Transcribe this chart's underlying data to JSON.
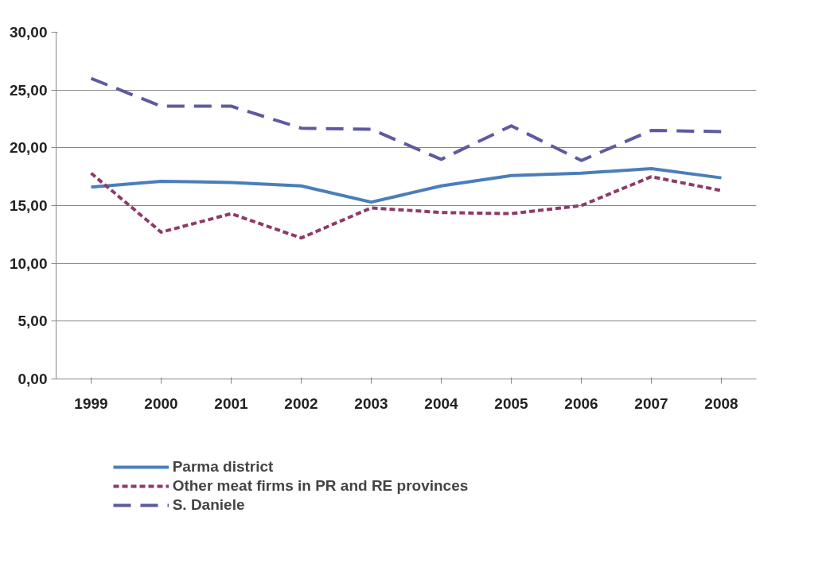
{
  "chart_data": {
    "type": "line",
    "categories": [
      "1999",
      "2000",
      "2001",
      "2002",
      "2003",
      "2004",
      "2005",
      "2006",
      "2007",
      "2008"
    ],
    "ylim": [
      0,
      30
    ],
    "yticks": [
      {
        "value": 0,
        "label": "0,00"
      },
      {
        "value": 5,
        "label": "5,00"
      },
      {
        "value": 10,
        "label": "10,00"
      },
      {
        "value": 15,
        "label": "15,00"
      },
      {
        "value": 20,
        "label": "20,00"
      },
      {
        "value": 25,
        "label": "25,00"
      },
      {
        "value": 30,
        "label": "30,00"
      }
    ],
    "grid": "y",
    "legend": "bottom",
    "marker": "none",
    "series": [
      {
        "name": "Parma district",
        "color": "#4a7ebb",
        "line_style": "solid",
        "values": [
          16.6,
          17.1,
          17.0,
          16.7,
          15.3,
          16.7,
          17.6,
          17.8,
          18.2,
          17.4
        ]
      },
      {
        "name": "Other meat firms in PR and RE provinces",
        "color": "#8e3a68",
        "line_style": "dotted",
        "values": [
          17.8,
          12.7,
          14.3,
          12.2,
          14.8,
          14.4,
          14.3,
          15.0,
          17.5,
          16.3
        ]
      },
      {
        "name": "S. Daniele",
        "color": "#5e5aa0",
        "line_style": "dashed",
        "values": [
          26.0,
          23.6,
          23.6,
          21.7,
          21.6,
          19.0,
          21.9,
          18.9,
          21.5,
          21.4
        ]
      }
    ]
  }
}
